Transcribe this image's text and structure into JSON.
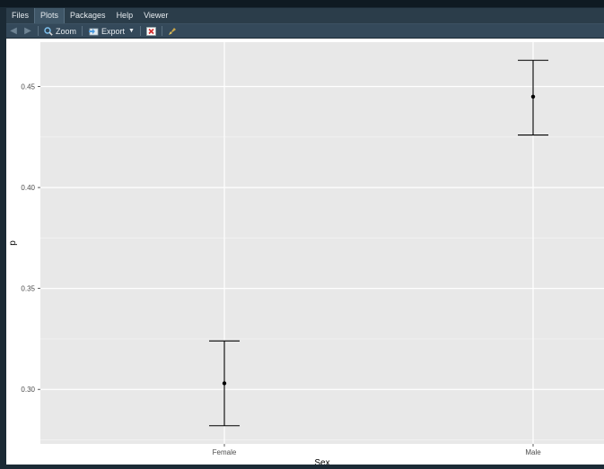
{
  "tabs": [
    {
      "label": "Files"
    },
    {
      "label": "Plots"
    },
    {
      "label": "Packages"
    },
    {
      "label": "Help"
    },
    {
      "label": "Viewer"
    }
  ],
  "active_tab": "Plots",
  "toolbar": {
    "zoom_label": "Zoom",
    "export_label": "Export",
    "icons": [
      "back-arrow-icon",
      "forward-arrow-icon",
      "zoom-icon",
      "export-icon",
      "remove-plot-icon",
      "clear-all-broom-icon"
    ]
  },
  "chart_data": {
    "type": "scatter",
    "categories": [
      "Female",
      "Male"
    ],
    "x": [
      "Female",
      "Male"
    ],
    "series": [
      {
        "values": [
          0.303,
          0.445
        ],
        "lower": [
          0.282,
          0.426
        ],
        "upper": [
          0.324,
          0.463
        ]
      }
    ],
    "xlabel": "Sex",
    "ylabel": "p",
    "yticks": [
      "0.30",
      "0.35",
      "0.40",
      "0.45"
    ],
    "ylim": [
      0.273,
      0.472
    ],
    "grid": true,
    "colors": {
      "panel_bg": "#e8e8e8",
      "grid": "#ffffff",
      "mark": "#000000",
      "axis_text": "#4d4d4d"
    }
  }
}
